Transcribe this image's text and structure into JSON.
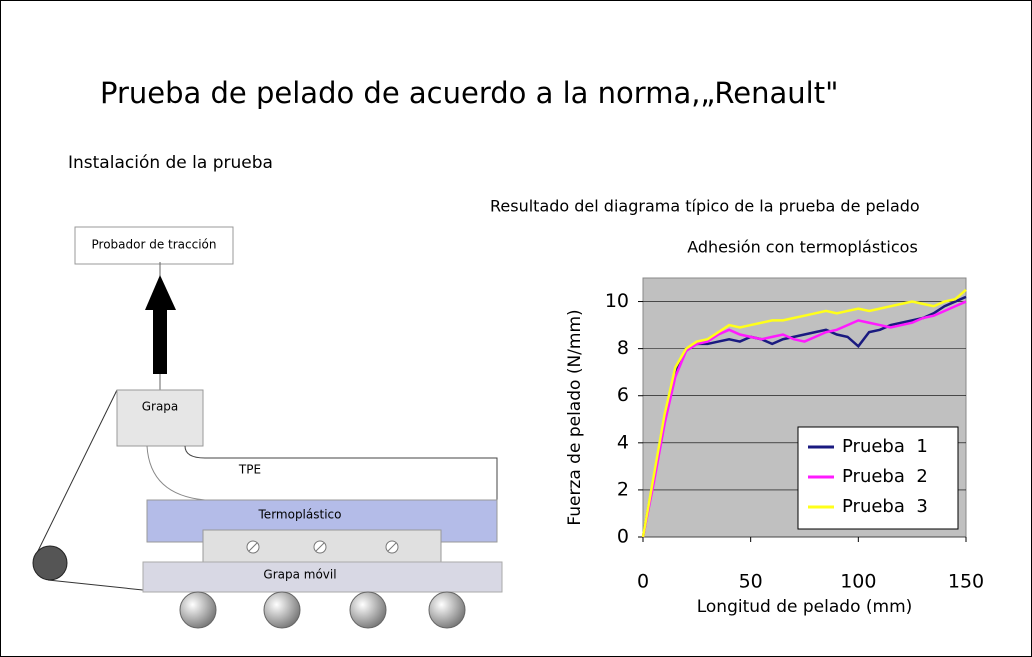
{
  "header": {
    "title": "Prueba de pelado de acuerdo a la norma,„Renault\"",
    "subtitle": "Instalación de la prueba"
  },
  "diagram": {
    "tester": "Probador de tracción",
    "clamp": "Grapa",
    "tpe": "TPE",
    "thermoplastic": "Termoplástico",
    "moving_clamp": "Grapa móvil"
  },
  "result_heading": "Resultado del diagrama típico de la prueba de pelado",
  "chart_data": {
    "type": "line",
    "title": "Adhesión con termoplásticos",
    "x_label": "Longitud de pelado (mm)",
    "y_label": "Fuerza de pelado (N/mm)",
    "x": [
      0,
      5,
      10,
      15,
      20,
      25,
      30,
      35,
      40,
      45,
      50,
      55,
      60,
      65,
      70,
      75,
      80,
      85,
      90,
      95,
      100,
      105,
      110,
      115,
      120,
      125,
      130,
      135,
      140,
      145,
      150
    ],
    "series": [
      {
        "name": "Prueba  1",
        "color": "#1a1a80",
        "values": [
          0,
          2.5,
          5,
          7,
          8,
          8.2,
          8.2,
          8.3,
          8.4,
          8.3,
          8.5,
          8.4,
          8.2,
          8.4,
          8.5,
          8.6,
          8.7,
          8.8,
          8.6,
          8.5,
          8.1,
          8.7,
          8.8,
          9.0,
          9.1,
          9.2,
          9.3,
          9.5,
          9.8,
          10.0,
          10.2
        ]
      },
      {
        "name": "Prueba  2",
        "color": "#ff1aff",
        "values": [
          0,
          2.3,
          4.8,
          6.8,
          7.9,
          8.2,
          8.3,
          8.6,
          8.8,
          8.6,
          8.5,
          8.4,
          8.5,
          8.6,
          8.4,
          8.3,
          8.5,
          8.7,
          8.8,
          9.0,
          9.2,
          9.1,
          9.0,
          8.9,
          9.0,
          9.1,
          9.3,
          9.4,
          9.6,
          9.8,
          10.0
        ]
      },
      {
        "name": "Prueba  3",
        "color": "#ffff1a",
        "values": [
          0,
          2.6,
          5.2,
          7.2,
          8.0,
          8.3,
          8.4,
          8.7,
          9.0,
          8.9,
          9.0,
          9.1,
          9.2,
          9.2,
          9.3,
          9.4,
          9.5,
          9.6,
          9.5,
          9.6,
          9.7,
          9.6,
          9.7,
          9.8,
          9.9,
          10.0,
          9.9,
          9.8,
          10.0,
          10.1,
          10.5
        ]
      }
    ],
    "xlim": [
      0,
      150
    ],
    "xticks": [
      0,
      50,
      100,
      150
    ],
    "ylim": [
      0,
      11
    ],
    "yticks": [
      0,
      2,
      4,
      6,
      8,
      10
    ],
    "grid": true,
    "legend": "lower right"
  }
}
